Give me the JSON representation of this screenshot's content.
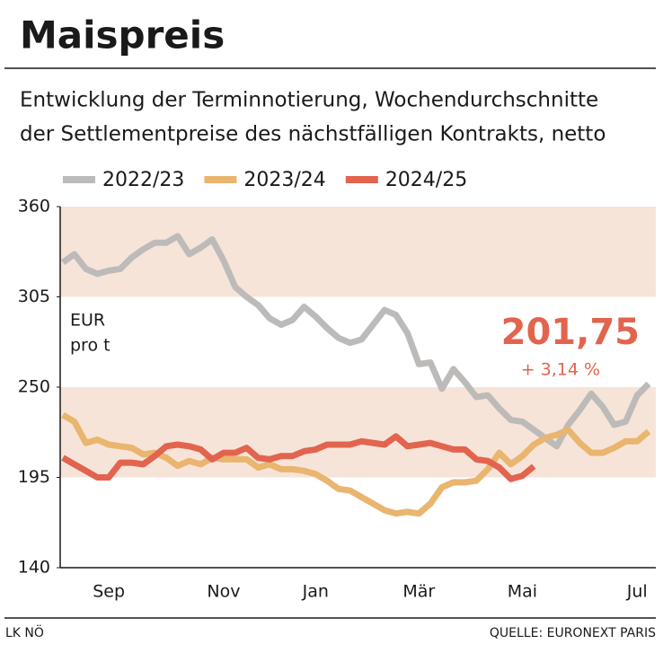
{
  "chart_data": {
    "type": "line",
    "title": "Maispreis",
    "subtitle": [
      "Entwicklung der Terminnotierung, Wochendurchschnitte",
      "der Settlementpreise des nächstfälligen Kontrakts, netto"
    ],
    "unit_label": [
      "EUR",
      "pro t"
    ],
    "annotation": {
      "value": "201,75",
      "change": "+ 3,14 %"
    },
    "footer_left": "LK NÖ",
    "footer_right": "QUELLE: EURONEXT PARIS",
    "categories": [
      null,
      null,
      null,
      null,
      "Sep",
      null,
      null,
      null,
      null,
      null,
      null,
      null,
      null,
      null,
      "Nov",
      null,
      null,
      null,
      null,
      null,
      null,
      null,
      "Jan",
      null,
      null,
      null,
      null,
      null,
      null,
      null,
      null,
      "Mär",
      null,
      null,
      null,
      null,
      null,
      null,
      null,
      null,
      "Mai",
      null,
      null,
      null,
      null,
      null,
      null,
      null,
      null,
      null,
      "Jul",
      null
    ],
    "ylim": [
      140,
      360
    ],
    "yticks": [
      140,
      195,
      250,
      305,
      360
    ],
    "bands": true,
    "series": [
      {
        "name": "2022/23",
        "color": "#bdbbb9",
        "values": [
          326,
          331,
          322,
          319,
          321,
          322,
          329,
          334,
          338,
          338,
          342,
          331,
          335,
          340,
          327,
          311,
          305,
          300,
          292,
          288,
          291,
          299,
          293,
          286,
          280,
          277,
          279,
          288,
          297,
          294,
          283,
          264,
          265,
          249,
          261,
          253,
          244,
          245,
          237,
          230,
          229,
          224,
          219,
          214,
          227,
          236,
          246,
          238,
          227,
          229,
          245,
          252
        ]
      },
      {
        "name": "2023/24",
        "color": "#e9b56f",
        "values": [
          233,
          229,
          216,
          218,
          215,
          214,
          213,
          209,
          210,
          207,
          202,
          205,
          203,
          207,
          206,
          206,
          206,
          201,
          203,
          200,
          200,
          199,
          197,
          193,
          188,
          187,
          183,
          179,
          175,
          173,
          174,
          173,
          179,
          189,
          192,
          192,
          193,
          200,
          210,
          203,
          208,
          215,
          219,
          221,
          224,
          216,
          210,
          210,
          213,
          217,
          217,
          223
        ]
      },
      {
        "name": "2024/25",
        "color": "#e2644f",
        "values": [
          207,
          203,
          199,
          195,
          195,
          204,
          204,
          203,
          208,
          214,
          215,
          214,
          212,
          206,
          210,
          210,
          213,
          207,
          206,
          208,
          208,
          211,
          212,
          215,
          215,
          215,
          217,
          216,
          215,
          220,
          214,
          215,
          216,
          214,
          212,
          212,
          206,
          205,
          201,
          194,
          196,
          201.75,
          null,
          null,
          null,
          null,
          null,
          null,
          null,
          null,
          null,
          null
        ]
      }
    ]
  }
}
